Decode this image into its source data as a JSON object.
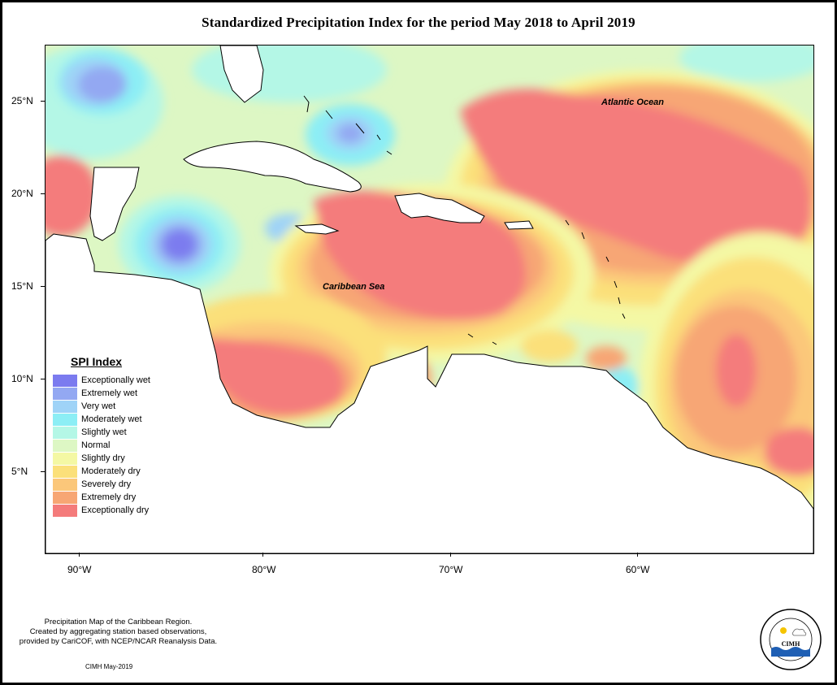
{
  "title": "Standardized Precipitation Index for the period May 2018 to April 2019",
  "axes": {
    "lat_labels": [
      "25°N",
      "20°N",
      "15°N",
      "10°N",
      "5°N"
    ],
    "lon_labels": [
      "90°W",
      "80°W",
      "70°W",
      "60°W"
    ]
  },
  "labels": {
    "atlantic": "Atlantic Ocean",
    "caribbean": "Caribbean Sea"
  },
  "legend": {
    "title": "SPI Index",
    "items": [
      {
        "label": "Exceptionally wet",
        "color": "#7b7bef"
      },
      {
        "label": "Extremely wet",
        "color": "#93a8f2"
      },
      {
        "label": "Very wet",
        "color": "#9fd3f7"
      },
      {
        "label": "Moderately wet",
        "color": "#8ceef5"
      },
      {
        "label": "Slightly wet",
        "color": "#b4f7e6"
      },
      {
        "label": "Normal",
        "color": "#ddf7c4"
      },
      {
        "label": "Slightly dry",
        "color": "#f4f8a4"
      },
      {
        "label": "Moderately dry",
        "color": "#fbe07a"
      },
      {
        "label": "Severely dry",
        "color": "#fbc77a"
      },
      {
        "label": "Extremely dry",
        "color": "#f7a674"
      },
      {
        "label": "Exceptionally dry",
        "color": "#f47b7b"
      }
    ]
  },
  "caption": {
    "line1": "Precipitation Map of the Caribbean Region.",
    "line2": "Created by aggregating station based observations,",
    "line3": "provided by CariCOF, with NCEP/NCAR Reanalysis Data.",
    "date": "CIMH May-2019"
  },
  "logo": {
    "text": "CIMH"
  }
}
